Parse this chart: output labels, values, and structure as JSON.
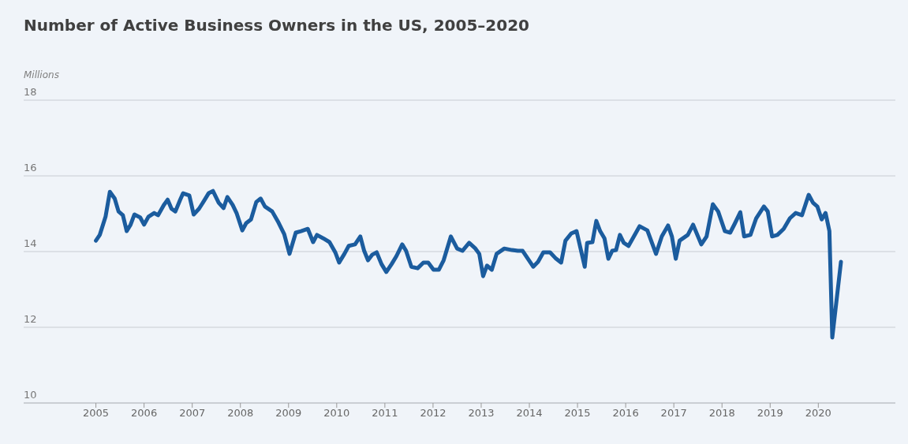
{
  "chart_data": {
    "type": "line",
    "title": "Number of Active Business Owners in the US, 2005–2020",
    "ylabel": "Millions",
    "xlim": [
      2003.5,
      2021.6
    ],
    "xticks": [
      2005,
      2006,
      2007,
      2008,
      2009,
      2010,
      2011,
      2012,
      2013,
      2014,
      2015,
      2016,
      2017,
      2018,
      2019,
      2020
    ],
    "ylim": [
      10,
      18
    ],
    "yticks": [
      10,
      12,
      14,
      16,
      18
    ],
    "grid": "y",
    "legend": false,
    "marker": "none",
    "line_style": "solid",
    "x": [
      2005.0,
      2005.08,
      2005.2,
      2005.29,
      2005.39,
      2005.47,
      2005.56,
      2005.64,
      2005.72,
      2005.8,
      2005.92,
      2006.0,
      2006.09,
      2006.21,
      2006.29,
      2006.41,
      2006.49,
      2006.57,
      2006.65,
      2006.75,
      2006.81,
      2006.94,
      2007.03,
      2007.14,
      2007.24,
      2007.34,
      2007.43,
      2007.55,
      2007.65,
      2007.73,
      2007.84,
      2007.92,
      2008.04,
      2008.12,
      2008.22,
      2008.33,
      2008.42,
      2008.51,
      2008.66,
      2008.79,
      2008.91,
      2009.02,
      2009.15,
      2009.26,
      2009.4,
      2009.51,
      2009.59,
      2009.72,
      2009.85,
      2009.97,
      2010.05,
      2010.16,
      2010.25,
      2010.38,
      2010.49,
      2010.57,
      2010.65,
      2010.74,
      2010.83,
      2010.93,
      2011.03,
      2011.14,
      2011.24,
      2011.36,
      2011.44,
      2011.55,
      2011.68,
      2011.8,
      2011.9,
      2012.01,
      2012.12,
      2012.22,
      2012.37,
      2012.5,
      2012.61,
      2012.75,
      2012.88,
      2012.96,
      2013.04,
      2013.12,
      2013.22,
      2013.32,
      2013.48,
      2013.64,
      2013.76,
      2013.86,
      2013.97,
      2014.08,
      2014.18,
      2014.29,
      2014.43,
      2014.54,
      2014.66,
      2014.75,
      2014.87,
      2014.98,
      2015.15,
      2015.2,
      2015.31,
      2015.39,
      2015.47,
      2015.56,
      2015.64,
      2015.72,
      2015.8,
      2015.88,
      2015.96,
      2016.06,
      2016.29,
      2016.45,
      2016.63,
      2016.75,
      2016.88,
      2016.96,
      2017.04,
      2017.12,
      2017.29,
      2017.4,
      2017.57,
      2017.68,
      2017.81,
      2017.92,
      2018.06,
      2018.17,
      2018.27,
      2018.38,
      2018.46,
      2018.59,
      2018.71,
      2018.87,
      2018.95,
      2019.04,
      2019.15,
      2019.28,
      2019.41,
      2019.53,
      2019.66,
      2019.8,
      2019.89,
      2019.98,
      2020.07,
      2020.15,
      2020.23,
      2020.29,
      2020.47
    ],
    "series": [
      {
        "color": "#1b5c9e",
        "values": [
          14.29,
          14.44,
          14.92,
          15.58,
          15.4,
          15.06,
          14.96,
          14.54,
          14.71,
          14.98,
          14.9,
          14.71,
          14.92,
          15.02,
          14.96,
          15.23,
          15.37,
          15.13,
          15.06,
          15.37,
          15.54,
          15.48,
          14.98,
          15.13,
          15.33,
          15.54,
          15.6,
          15.29,
          15.15,
          15.44,
          15.23,
          15.02,
          14.56,
          14.75,
          14.85,
          15.31,
          15.4,
          15.19,
          15.06,
          14.77,
          14.46,
          13.94,
          14.5,
          14.54,
          14.6,
          14.25,
          14.44,
          14.35,
          14.25,
          13.98,
          13.71,
          13.94,
          14.15,
          14.19,
          14.4,
          14.02,
          13.77,
          13.92,
          13.98,
          13.67,
          13.46,
          13.67,
          13.88,
          14.19,
          14.02,
          13.6,
          13.56,
          13.71,
          13.71,
          13.52,
          13.52,
          13.77,
          14.4,
          14.08,
          14.02,
          14.23,
          14.08,
          13.94,
          13.35,
          13.63,
          13.52,
          13.94,
          14.08,
          14.04,
          14.02,
          14.02,
          13.81,
          13.6,
          13.73,
          13.98,
          13.98,
          13.83,
          13.71,
          14.29,
          14.48,
          14.54,
          13.6,
          14.23,
          14.25,
          14.81,
          14.54,
          14.35,
          13.81,
          14.02,
          14.04,
          14.44,
          14.23,
          14.15,
          14.67,
          14.56,
          13.94,
          14.4,
          14.69,
          14.4,
          13.81,
          14.29,
          14.44,
          14.71,
          14.19,
          14.4,
          15.25,
          15.06,
          14.54,
          14.5,
          14.75,
          15.04,
          14.4,
          14.44,
          14.88,
          15.19,
          15.06,
          14.4,
          14.44,
          14.6,
          14.88,
          15.02,
          14.96,
          15.5,
          15.29,
          15.19,
          14.85,
          15.02,
          14.54,
          11.73,
          13.73
        ]
      }
    ]
  }
}
